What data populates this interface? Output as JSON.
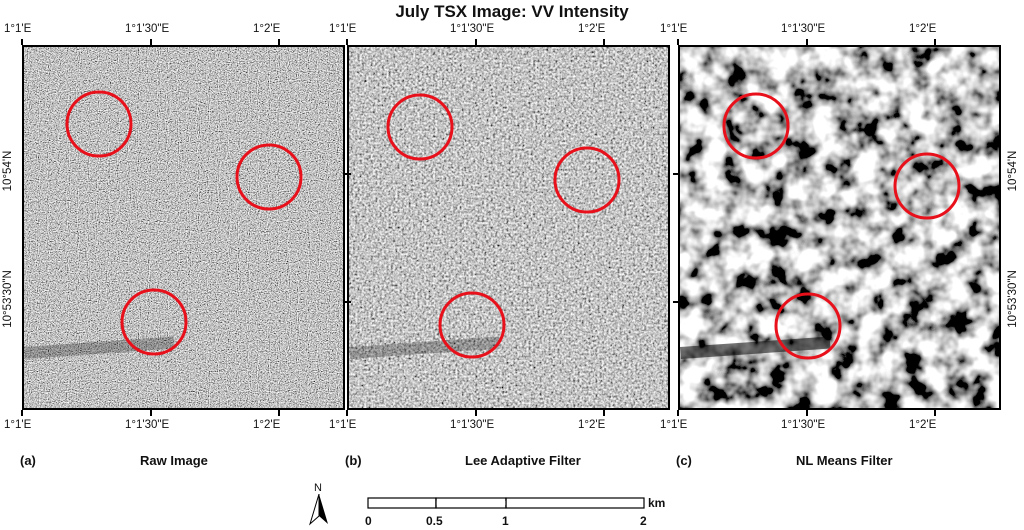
{
  "title": "July TSX Image: VV Intensity",
  "lon_ticks": [
    "1°1'E",
    "1°1'30\"E",
    "1°2'E"
  ],
  "lat_ticks": [
    "10°54'N",
    "10°53'30\"N"
  ],
  "panels": [
    {
      "letter": "(a)",
      "caption": "Raw Image",
      "style": "raw"
    },
    {
      "letter": "(b)",
      "caption": "Lee Adaptive Filter",
      "style": "lee"
    },
    {
      "letter": "(c)",
      "caption": "NL Means Filter",
      "style": "nlm"
    }
  ],
  "circle_color": "#e8101a",
  "north_arrow": {
    "label": "N",
    "icon": "north-arrow-icon"
  },
  "scale_bar": {
    "unit": "km",
    "labels": [
      "0",
      "0.5",
      "1",
      "2"
    ]
  }
}
